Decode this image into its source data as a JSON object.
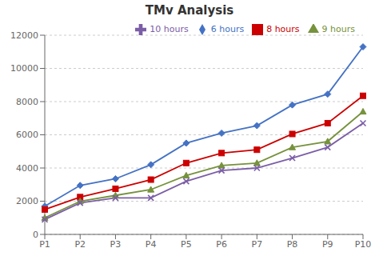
{
  "chart_data": {
    "type": "line",
    "title": "TMv Analysis",
    "categories": [
      "P1",
      "P2",
      "P3",
      "P4",
      "P5",
      "P6",
      "P7",
      "P8",
      "P9",
      "P10"
    ],
    "series": [
      {
        "name": "6 hours",
        "color": "#4472C4",
        "marker": "diamond",
        "values": [
          1700,
          2950,
          3350,
          4200,
          5500,
          6100,
          6550,
          7800,
          8450,
          11300
        ]
      },
      {
        "name": "8 hours",
        "color": "#CC0000",
        "marker": "square",
        "values": [
          1500,
          2250,
          2750,
          3300,
          4300,
          4900,
          5100,
          6050,
          6700,
          8350
        ]
      },
      {
        "name": "9 hours",
        "color": "#76923C",
        "marker": "triangle",
        "values": [
          1000,
          2000,
          2350,
          2700,
          3550,
          4150,
          4300,
          5250,
          5600,
          7400
        ]
      },
      {
        "name": "10 hours",
        "color": "#7B5EA7",
        "marker": "x",
        "values": [
          900,
          1900,
          2200,
          2200,
          3200,
          3850,
          4000,
          4600,
          5250,
          6700
        ]
      }
    ],
    "ylim": [
      0,
      12000
    ],
    "yticks": [
      0,
      2000,
      4000,
      6000,
      8000,
      10000,
      12000
    ],
    "grid": true,
    "legend": "upper right"
  }
}
